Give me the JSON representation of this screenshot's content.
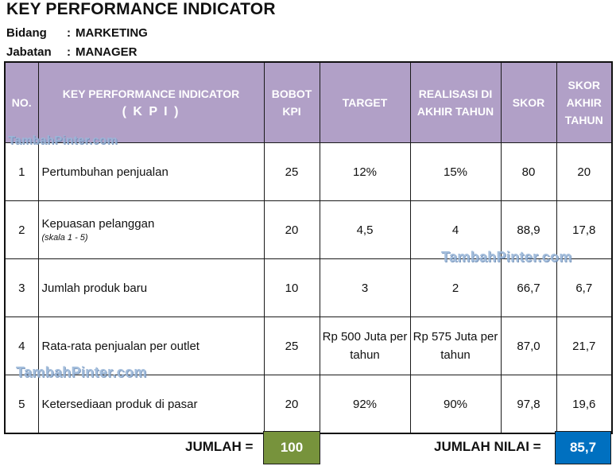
{
  "title": "KEY PERFORMANCE INDICATOR",
  "meta": {
    "bidang_label": "Bidang",
    "bidang_value": "MARKETING",
    "jabatan_label": "Jabatan",
    "jabatan_value": "MANAGER",
    "separator": ":"
  },
  "headers": {
    "no": "NO.",
    "kpi_line1": "KEY PERFORMANCE INDICATOR",
    "kpi_line2": "( K P I )",
    "bobot": "BOBOT KPI",
    "target": "TARGET",
    "realisasi": "REALISASI DI AKHIR TAHUN",
    "skor": "SKOR",
    "skor_akhir": "SKOR AKHIR TAHUN"
  },
  "rows": [
    {
      "no": "1",
      "indicator": "Pertumbuhan penjualan",
      "note": "",
      "bobot": "25",
      "target": "12%",
      "realisasi": "15%",
      "skor": "80",
      "skor_akhir": "20"
    },
    {
      "no": "2",
      "indicator": "Kepuasan pelanggan",
      "note": "(skala 1 - 5)",
      "bobot": "20",
      "target": "4,5",
      "realisasi": "4",
      "skor": "88,9",
      "skor_akhir": "17,8"
    },
    {
      "no": "3",
      "indicator": "Jumlah produk baru",
      "note": "",
      "bobot": "10",
      "target": "3",
      "realisasi": "2",
      "skor": "66,7",
      "skor_akhir": "6,7"
    },
    {
      "no": "4",
      "indicator": "Rata-rata penjualan per outlet",
      "note": "",
      "bobot": "25",
      "target": "Rp 500 Juta per tahun",
      "realisasi": "Rp 575 Juta per tahun",
      "skor": "87,0",
      "skor_akhir": "21,7"
    },
    {
      "no": "5",
      "indicator": "Ketersediaan produk di pasar",
      "note": "",
      "bobot": "20",
      "target": "92%",
      "realisasi": "90%",
      "skor": "97,8",
      "skor_akhir": "19,6"
    }
  ],
  "totals": {
    "jumlah_label": "JUMLAH =",
    "jumlah_value": "100",
    "jumlah_nilai_label": "JUMLAH NILAI =",
    "jumlah_nilai_value": "85,7"
  },
  "watermark": "TambahPinter.com",
  "colors": {
    "header_bg": "#b1a0c7",
    "jumlah_bg": "#77933c",
    "nilai_bg": "#0070c0"
  }
}
